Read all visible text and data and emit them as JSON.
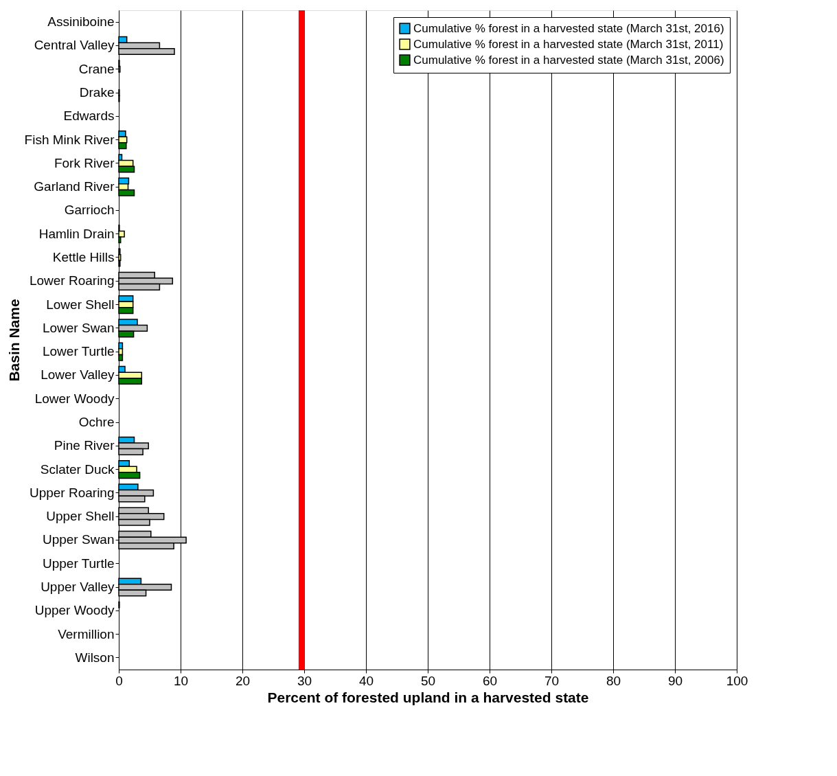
{
  "chart_data": {
    "type": "bar",
    "orientation": "horizontal",
    "xlabel": "Percent of forested upland in a harvested state",
    "ylabel": "Basin Name",
    "categories": [
      "Assiniboine",
      "Central Valley",
      "Crane",
      "Drake",
      "Edwards",
      "Fish Mink River",
      "Fork River",
      "Garland River",
      "Garrioch",
      "Hamlin Drain",
      "Kettle Hills",
      "Lower Roaring",
      "Lower Shell",
      "Lower Swan",
      "Lower Turtle",
      "Lower Valley",
      "Lower Woody",
      "Ochre",
      "Pine River",
      "Sclater Duck",
      "Upper Roaring",
      "Upper Shell",
      "Upper Swan",
      "Upper Turtle",
      "Upper Valley",
      "Upper Woody",
      "Vermillion",
      "Wilson"
    ],
    "series": [
      {
        "name": "Cumulative % forest in a harvested state (March 31st, 2016)",
        "color": "#00b0f0",
        "values": [
          null,
          1.3,
          0.1,
          null,
          null,
          1.1,
          0.5,
          1.6,
          null,
          0.1,
          0.2,
          5.8,
          2.3,
          3.0,
          0.6,
          1.0,
          null,
          null,
          2.5,
          1.7,
          3.1,
          4.8,
          5.2,
          null,
          3.6,
          0.1,
          null,
          null
        ],
        "colors": [
          "#00b0f0",
          "#00b0f0",
          "#00b0f0",
          "#00b0f0",
          "#00b0f0",
          "#00b0f0",
          "#00b0f0",
          "#00b0f0",
          "#00b0f0",
          "#00b0f0",
          "#00b0f0",
          "#c0c0c0",
          "#00b0f0",
          "#00b0f0",
          "#00b0f0",
          "#00b0f0",
          "#00b0f0",
          "#00b0f0",
          "#00b0f0",
          "#00b0f0",
          "#00b0f0",
          "#c0c0c0",
          "#c0c0c0",
          "#00b0f0",
          "#00b0f0",
          "#00b0f0",
          "#00b0f0",
          "#00b0f0"
        ]
      },
      {
        "name": "Cumulative % forest in a harvested state (March 31st, 2011)",
        "color": "#ffff99",
        "values": [
          null,
          6.6,
          0.2,
          0.1,
          null,
          1.3,
          2.3,
          1.5,
          null,
          0.9,
          0.3,
          8.7,
          2.3,
          4.6,
          0.6,
          3.7,
          null,
          null,
          4.8,
          2.9,
          5.6,
          7.3,
          10.9,
          null,
          8.5,
          null,
          null,
          null
        ],
        "colors": [
          "#ffff99",
          "#c0c0c0",
          "#ffff99",
          "#ffff99",
          "#ffff99",
          "#ffff99",
          "#ffff99",
          "#ffff99",
          "#ffff99",
          "#ffff99",
          "#ffff99",
          "#c0c0c0",
          "#ffff99",
          "#c0c0c0",
          "#ffff99",
          "#ffff99",
          "#ffff99",
          "#ffff99",
          "#c0c0c0",
          "#ffff99",
          "#c0c0c0",
          "#c0c0c0",
          "#c0c0c0",
          "#ffff99",
          "#c0c0c0",
          "#ffff99",
          "#ffff99",
          "#ffff99"
        ]
      },
      {
        "name": "Cumulative % forest in a harvested state (March 31st, 2006)",
        "color": "#008000",
        "values": [
          null,
          9.0,
          null,
          0.1,
          null,
          1.2,
          2.5,
          2.5,
          null,
          0.3,
          0.2,
          6.6,
          2.3,
          2.4,
          0.6,
          3.7,
          null,
          null,
          3.9,
          3.4,
          4.2,
          5.0,
          8.9,
          null,
          4.4,
          null,
          null,
          null
        ],
        "colors": [
          "#008000",
          "#c0c0c0",
          "#008000",
          "#008000",
          "#008000",
          "#008000",
          "#008000",
          "#008000",
          "#008000",
          "#008000",
          "#008000",
          "#c0c0c0",
          "#008000",
          "#008000",
          "#008000",
          "#008000",
          "#008000",
          "#008000",
          "#c0c0c0",
          "#008000",
          "#c0c0c0",
          "#c0c0c0",
          "#c0c0c0",
          "#008000",
          "#c0c0c0",
          "#008000",
          "#008000",
          "#008000"
        ]
      }
    ],
    "xlim": [
      0,
      100
    ],
    "xticks": [
      0,
      10,
      20,
      30,
      40,
      50,
      60,
      70,
      80,
      90,
      100
    ],
    "grid": "x",
    "legend": "top right",
    "ref_lines": [
      {
        "axis": "x",
        "value": 29.6,
        "color": "#ff0000"
      }
    ]
  }
}
